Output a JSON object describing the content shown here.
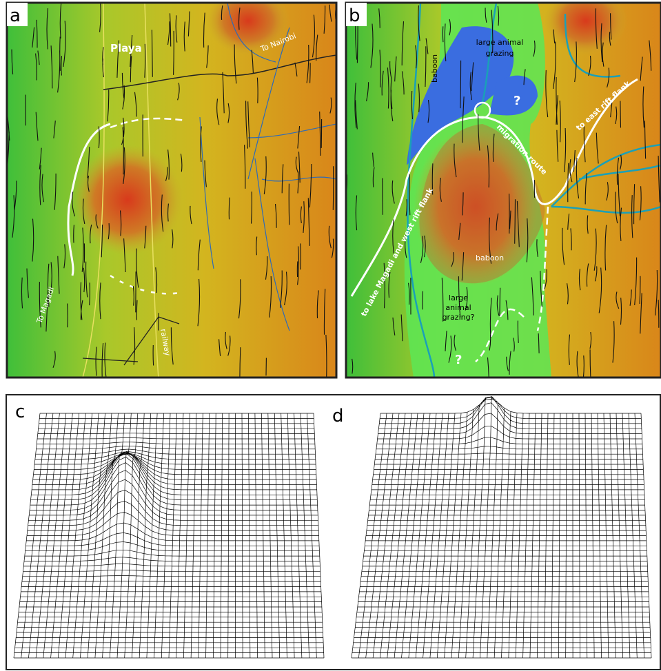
{
  "panels": {
    "a": {
      "label": "a",
      "playa": "Playa",
      "to_nairobi": "To Nairobi",
      "to_magadi": "To Magadi",
      "railway": "railway"
    },
    "b": {
      "label": "b",
      "baboon_north": "baboon",
      "grazing_north": [
        "large animal",
        "grazing"
      ],
      "question_north": "?",
      "migration_route": "migration route",
      "to_east": "to east rift flank",
      "to_west": "to lake Magadi and west rift flank",
      "baboon_south": "baboon",
      "grazing_south": [
        "large",
        "animal",
        "grazing?"
      ],
      "question_south": "?"
    },
    "c": {
      "label": "c"
    },
    "d": {
      "label": "d"
    }
  }
}
